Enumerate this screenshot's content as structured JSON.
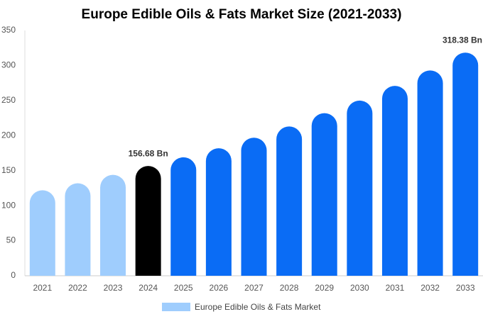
{
  "chart_data": {
    "type": "bar",
    "title": "Europe Edible Oils & Fats Market Size (2021-2033)",
    "categories": [
      "2021",
      "2022",
      "2023",
      "2024",
      "2025",
      "2026",
      "2027",
      "2028",
      "2029",
      "2030",
      "2031",
      "2032",
      "2033"
    ],
    "series": [
      {
        "name": "Europe Edible Oils & Fats Market",
        "color": "#9fcdfd",
        "values": [
          122,
          132,
          144,
          156.68,
          169,
          182,
          197,
          213,
          232,
          250,
          271,
          293,
          318.38
        ],
        "value_labels": [
          null,
          null,
          null,
          "156.68 Bn",
          null,
          null,
          null,
          null,
          null,
          null,
          null,
          null,
          "318.38 Bn"
        ],
        "colors": [
          "#9fcdfd",
          "#9fcdfd",
          "#9fcdfd",
          "#000000",
          "#0a6cf5",
          "#0a6cf5",
          "#0a6cf5",
          "#0a6cf5",
          "#0a6cf5",
          "#0a6cf5",
          "#0a6cf5",
          "#0a6cf5",
          "#0a6cf5"
        ]
      }
    ],
    "ylim": [
      0,
      350
    ],
    "yticks": [
      0,
      50,
      100,
      150,
      200,
      250,
      300,
      350
    ],
    "grid": false
  }
}
